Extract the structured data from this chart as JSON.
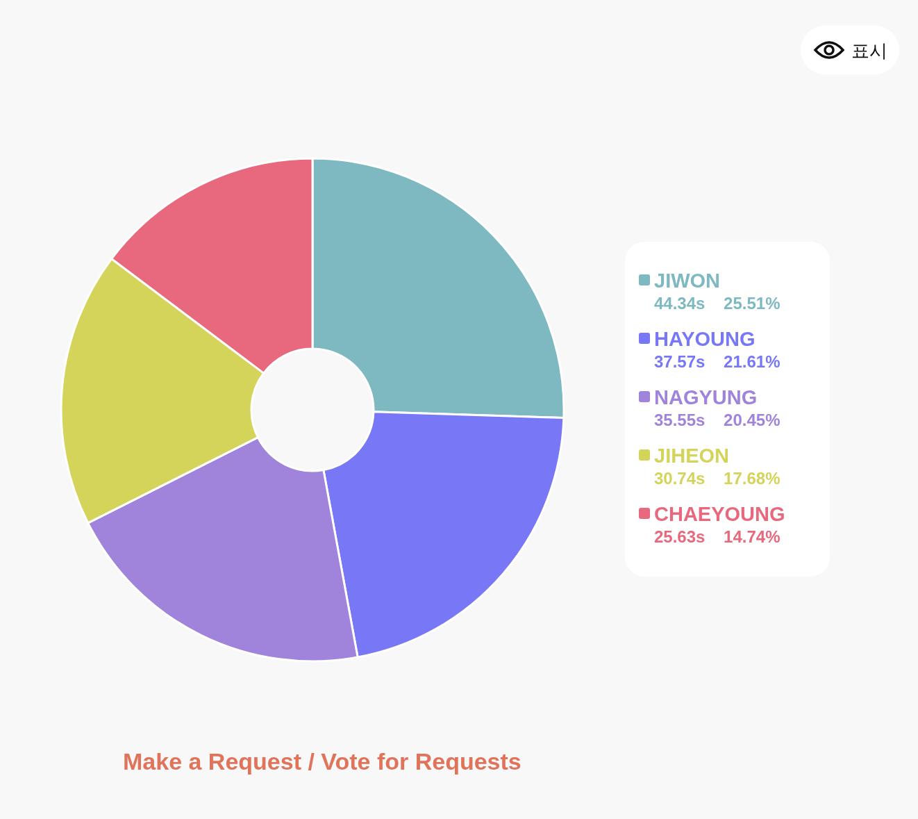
{
  "chart_data": {
    "type": "donut",
    "categories": [
      "JIWON",
      "HAYOUNG",
      "NAGYUNG",
      "JIHEON",
      "CHAEYOUNG"
    ],
    "values": [
      44.34,
      37.57,
      35.55,
      30.74,
      25.63
    ],
    "value_labels": [
      "44.34s    25.51%",
      "37.57s    21.61%",
      "35.55s    20.45%",
      "30.74s    17.68%",
      "25.63s    14.74%"
    ],
    "colors": [
      "#7eb9c1",
      "#7877f5",
      "#a083da",
      "#d4d35a",
      "#e8697d"
    ],
    "legend": "right",
    "annotations": [
      "표시",
      "Make a Request / Vote for Requests"
    ]
  }
}
